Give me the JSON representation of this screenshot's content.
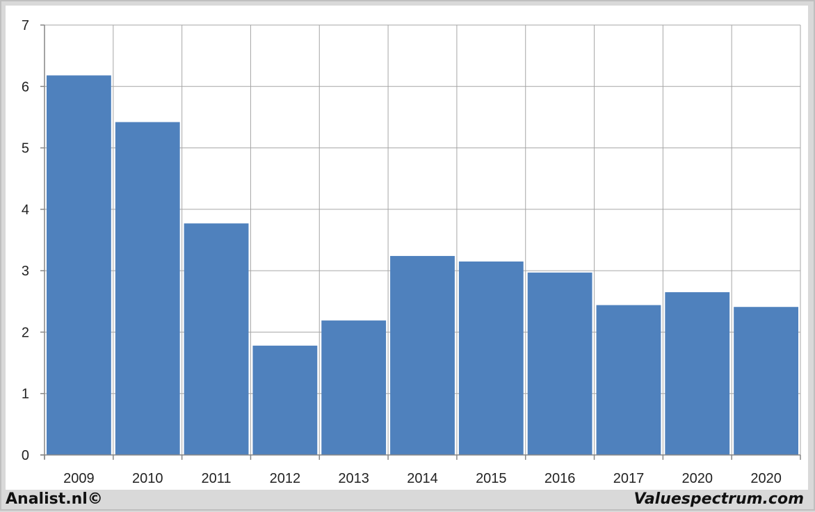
{
  "footer": {
    "left": "Analist.nl©",
    "right": "Valuespectrum.com"
  },
  "colors": {
    "bar": "#4f81bd",
    "grid": "#a6a6a6",
    "axis": "#868686"
  },
  "chart_data": {
    "type": "bar",
    "categories": [
      "2009",
      "2010",
      "2011",
      "2012",
      "2013",
      "2014",
      "2015",
      "2016",
      "2017",
      "2020",
      "2020"
    ],
    "values": [
      6.18,
      5.42,
      3.77,
      1.78,
      2.19,
      3.24,
      3.15,
      2.97,
      2.44,
      2.65,
      2.41
    ],
    "ylim": [
      0,
      7
    ],
    "yticks": [
      0,
      1,
      2,
      3,
      4,
      5,
      6,
      7
    ],
    "title": "",
    "xlabel": "",
    "ylabel": "",
    "grid": true,
    "legend": "none"
  }
}
